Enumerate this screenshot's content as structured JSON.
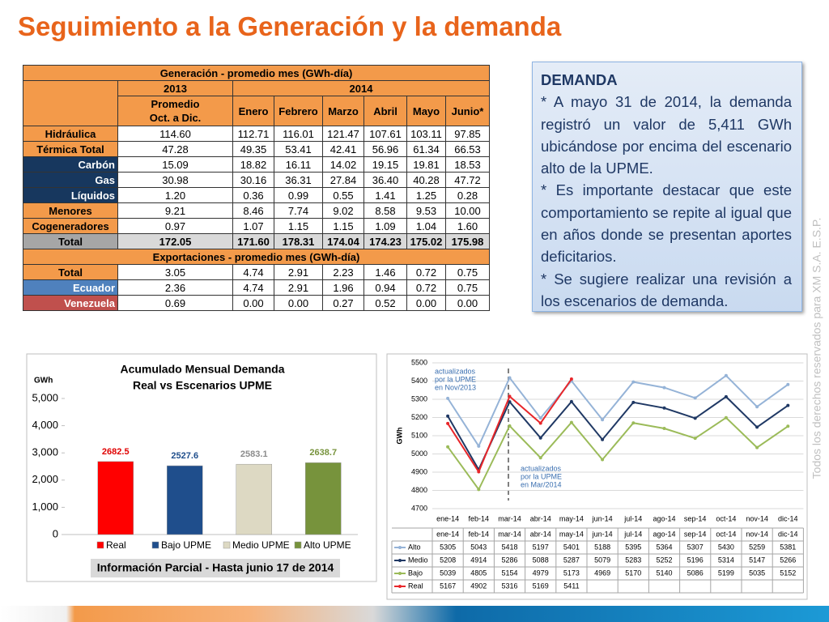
{
  "title": "Seguimiento a la Generación y la demanda",
  "table": {
    "title": "Generación - promedio mes (GWh-día)",
    "year_headers": [
      "2013",
      "2014"
    ],
    "columns": [
      "Promedio Oct. a Dic.",
      "Enero",
      "Febrero",
      "Marzo",
      "Abril",
      "Mayo",
      "Junio*"
    ],
    "rows": [
      {
        "label": "Hidráulica",
        "cells": [
          "114.60",
          "112.71",
          "116.01",
          "121.47",
          "107.61",
          "103.11",
          "97.85"
        ]
      },
      {
        "label": "Térmica Total",
        "cells": [
          "47.28",
          "49.35",
          "53.41",
          "42.41",
          "56.96",
          "61.34",
          "66.53"
        ]
      },
      {
        "label": "Carbón",
        "cells": [
          "15.09",
          "18.82",
          "16.11",
          "14.02",
          "19.15",
          "19.81",
          "18.53"
        ]
      },
      {
        "label": "Gas",
        "cells": [
          "30.98",
          "30.16",
          "36.31",
          "27.84",
          "36.40",
          "40.28",
          "47.72"
        ]
      },
      {
        "label": "Líquidos",
        "cells": [
          "1.20",
          "0.36",
          "0.99",
          "0.55",
          "1.41",
          "1.25",
          "0.28"
        ]
      },
      {
        "label": "Menores",
        "cells": [
          "9.21",
          "8.46",
          "7.74",
          "9.02",
          "8.58",
          "9.53",
          "10.00"
        ]
      },
      {
        "label": "Cogeneradores",
        "cells": [
          "0.97",
          "1.07",
          "1.15",
          "1.15",
          "1.09",
          "1.04",
          "1.60"
        ]
      },
      {
        "label": "Total",
        "cells": [
          "172.05",
          "171.60",
          "178.31",
          "174.04",
          "174.23",
          "175.02",
          "175.98"
        ]
      }
    ],
    "exports_title": "Exportaciones - promedio mes (GWh-día)",
    "export_rows": [
      {
        "label": "Total",
        "cells": [
          "3.05",
          "4.74",
          "2.91",
          "2.23",
          "1.46",
          "0.72",
          "0.75"
        ]
      },
      {
        "label": "Ecuador",
        "cells": [
          "2.36",
          "4.74",
          "2.91",
          "1.96",
          "0.94",
          "0.72",
          "0.75"
        ]
      },
      {
        "label": "Venezuela",
        "cells": [
          "0.69",
          "0.00",
          "0.00",
          "0.27",
          "0.52",
          "0.00",
          "0.00"
        ]
      }
    ]
  },
  "demanda": {
    "heading": "DEMANDA",
    "paragraphs": [
      "* A mayo 31 de 2014, la demanda registró un valor de 5,411 GWh ubicándose por encima del escenario alto de la UPME.",
      "* Es importante destacar que este comportamiento se repite al igual que en años donde se presentan aportes deficitarios.",
      "* Se sugiere realizar una revisión a los escenarios de demanda."
    ]
  },
  "chart_data": [
    {
      "type": "bar",
      "title": [
        "Acumulado Mensual Demanda",
        "Real vs Escenarios UPME"
      ],
      "y_label": "GWh",
      "categories": [
        "Real",
        "Bajo UPME",
        "Medio UPME",
        "Alto UPME"
      ],
      "values": [
        2682.5,
        2527.6,
        2583.1,
        2638.7
      ],
      "colors": [
        "#ff0000",
        "#1f4e8c",
        "#ddd9c3",
        "#77933c"
      ],
      "label_colors": [
        "#e00000",
        "#1f4e8c",
        "#8c8c8c",
        "#77933c"
      ],
      "ylim": [
        0,
        5000
      ],
      "yticks": [
        0,
        {
          "value": 1000,
          "label": "1,000"
        },
        {
          "value": 2000,
          "label": "2,000"
        },
        {
          "value": 3000,
          "label": "3,000"
        },
        {
          "value": 4000,
          "label": "4,000"
        },
        {
          "value": 5000,
          "label": "5,000"
        }
      ],
      "footer": "Información Parcial - Hasta junio 17 de 2014"
    },
    {
      "type": "line",
      "y_label": "GWh",
      "categories": [
        "ene-14",
        "feb-14",
        "mar-14",
        "abr-14",
        "may-14",
        "jun-14",
        "jul-14",
        "ago-14",
        "sep-14",
        "oct-14",
        "nov-14",
        "dic-14"
      ],
      "ylim": [
        4700,
        5500
      ],
      "yticks": [
        4700,
        4800,
        4900,
        5000,
        5100,
        5200,
        5300,
        5400,
        5500
      ],
      "grid": true,
      "series": [
        {
          "name": "Alto",
          "color": "#95b3d7",
          "values": [
            5305,
            5043,
            5418,
            5197,
            5401,
            5188,
            5395,
            5364,
            5307,
            5430,
            5259,
            5381
          ]
        },
        {
          "name": "Medio",
          "color": "#1f3864",
          "values": [
            5208,
            4914,
            5286,
            5088,
            5287,
            5079,
            5283,
            5252,
            5196,
            5314,
            5147,
            5266
          ]
        },
        {
          "name": "Bajo",
          "color": "#9bbb59",
          "values": [
            5039,
            4805,
            5154,
            4979,
            5173,
            4969,
            5170,
            5140,
            5086,
            5199,
            5035,
            5152
          ]
        },
        {
          "name": "Real",
          "color": "#e8262a",
          "values": [
            5167,
            4902,
            5316,
            5169,
            5411,
            null,
            null,
            null,
            null,
            null,
            null,
            null
          ]
        }
      ],
      "annotations": [
        [
          "actualizados",
          "por la UPME",
          "en Nov/2013"
        ],
        [
          "actualizados",
          "por la UPME",
          "en Mar/2014"
        ]
      ]
    }
  ],
  "watermark": "Todos los derechos reservados para XM S.A. E.S.P."
}
